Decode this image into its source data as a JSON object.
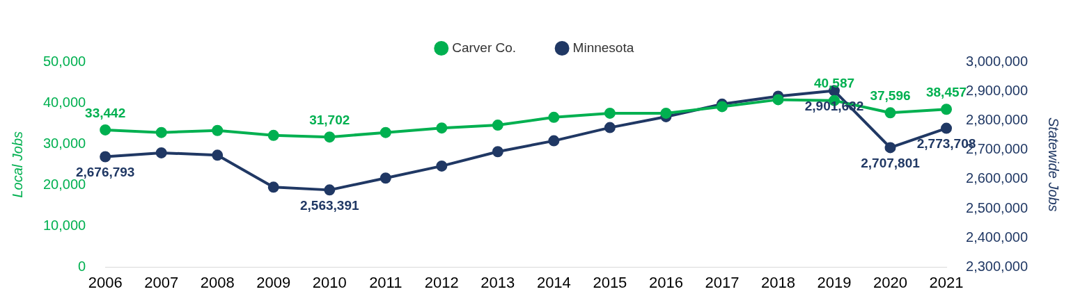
{
  "chart_data": {
    "type": "line",
    "xlabel": null,
    "ylabel": "Local Jobs",
    "y2label": "Statewide Jobs",
    "categories": [
      "2006",
      "2007",
      "2008",
      "2009",
      "2010",
      "2011",
      "2012",
      "2013",
      "2014",
      "2015",
      "2016",
      "2017",
      "2018",
      "2019",
      "2020",
      "2021"
    ],
    "series": [
      {
        "name": "Carver Co.",
        "color": "#00b050",
        "values": [
          33442,
          32800,
          33300,
          32100,
          31702,
          32800,
          33900,
          34600,
          36500,
          37500,
          37500,
          39100,
          40800,
          40587,
          37596,
          38457
        ],
        "value_labels": [
          "33,442",
          null,
          null,
          null,
          "31,702",
          null,
          null,
          null,
          null,
          null,
          null,
          null,
          null,
          "40,587",
          "37,596",
          "38,457"
        ]
      },
      {
        "name": "Minnesota",
        "color": "#203864",
        "axis": "y2",
        "values": [
          2676793,
          2690000,
          2682000,
          2573000,
          2563391,
          2604000,
          2645000,
          2694000,
          2731000,
          2776000,
          2813000,
          2856000,
          2883000,
          2901632,
          2707801,
          2773708
        ],
        "value_labels": [
          "2,676,793",
          null,
          null,
          null,
          "2,563,391",
          null,
          null,
          null,
          null,
          null,
          null,
          null,
          null,
          "2,901,632",
          "2,707,801",
          "2,773,708"
        ]
      }
    ],
    "ylim": [
      0,
      50000
    ],
    "yticks": [
      0,
      {
        "value": 10000,
        "label": "10,000"
      },
      {
        "value": 20000,
        "label": "20,000"
      },
      {
        "value": 30000,
        "label": "30,000"
      },
      {
        "value": 40000,
        "label": "40,000"
      },
      {
        "value": 50000,
        "label": "50,000"
      }
    ],
    "y2lim": [
      2300000,
      3000000
    ],
    "y2ticks": [
      {
        "value": 2300000,
        "label": "2,300,000"
      },
      {
        "value": 2400000,
        "label": "2,400,000"
      },
      {
        "value": 2500000,
        "label": "2,500,000"
      },
      {
        "value": 2600000,
        "label": "2,600,000"
      },
      {
        "value": 2700000,
        "label": "2,700,000"
      },
      {
        "value": 2800000,
        "label": "2,800,000"
      },
      {
        "value": 2900000,
        "label": "2,900,000"
      },
      {
        "value": 3000000,
        "label": "3,000,000"
      }
    ],
    "grid": false,
    "legend": "top",
    "marker": "circle",
    "line_style": "solid"
  }
}
